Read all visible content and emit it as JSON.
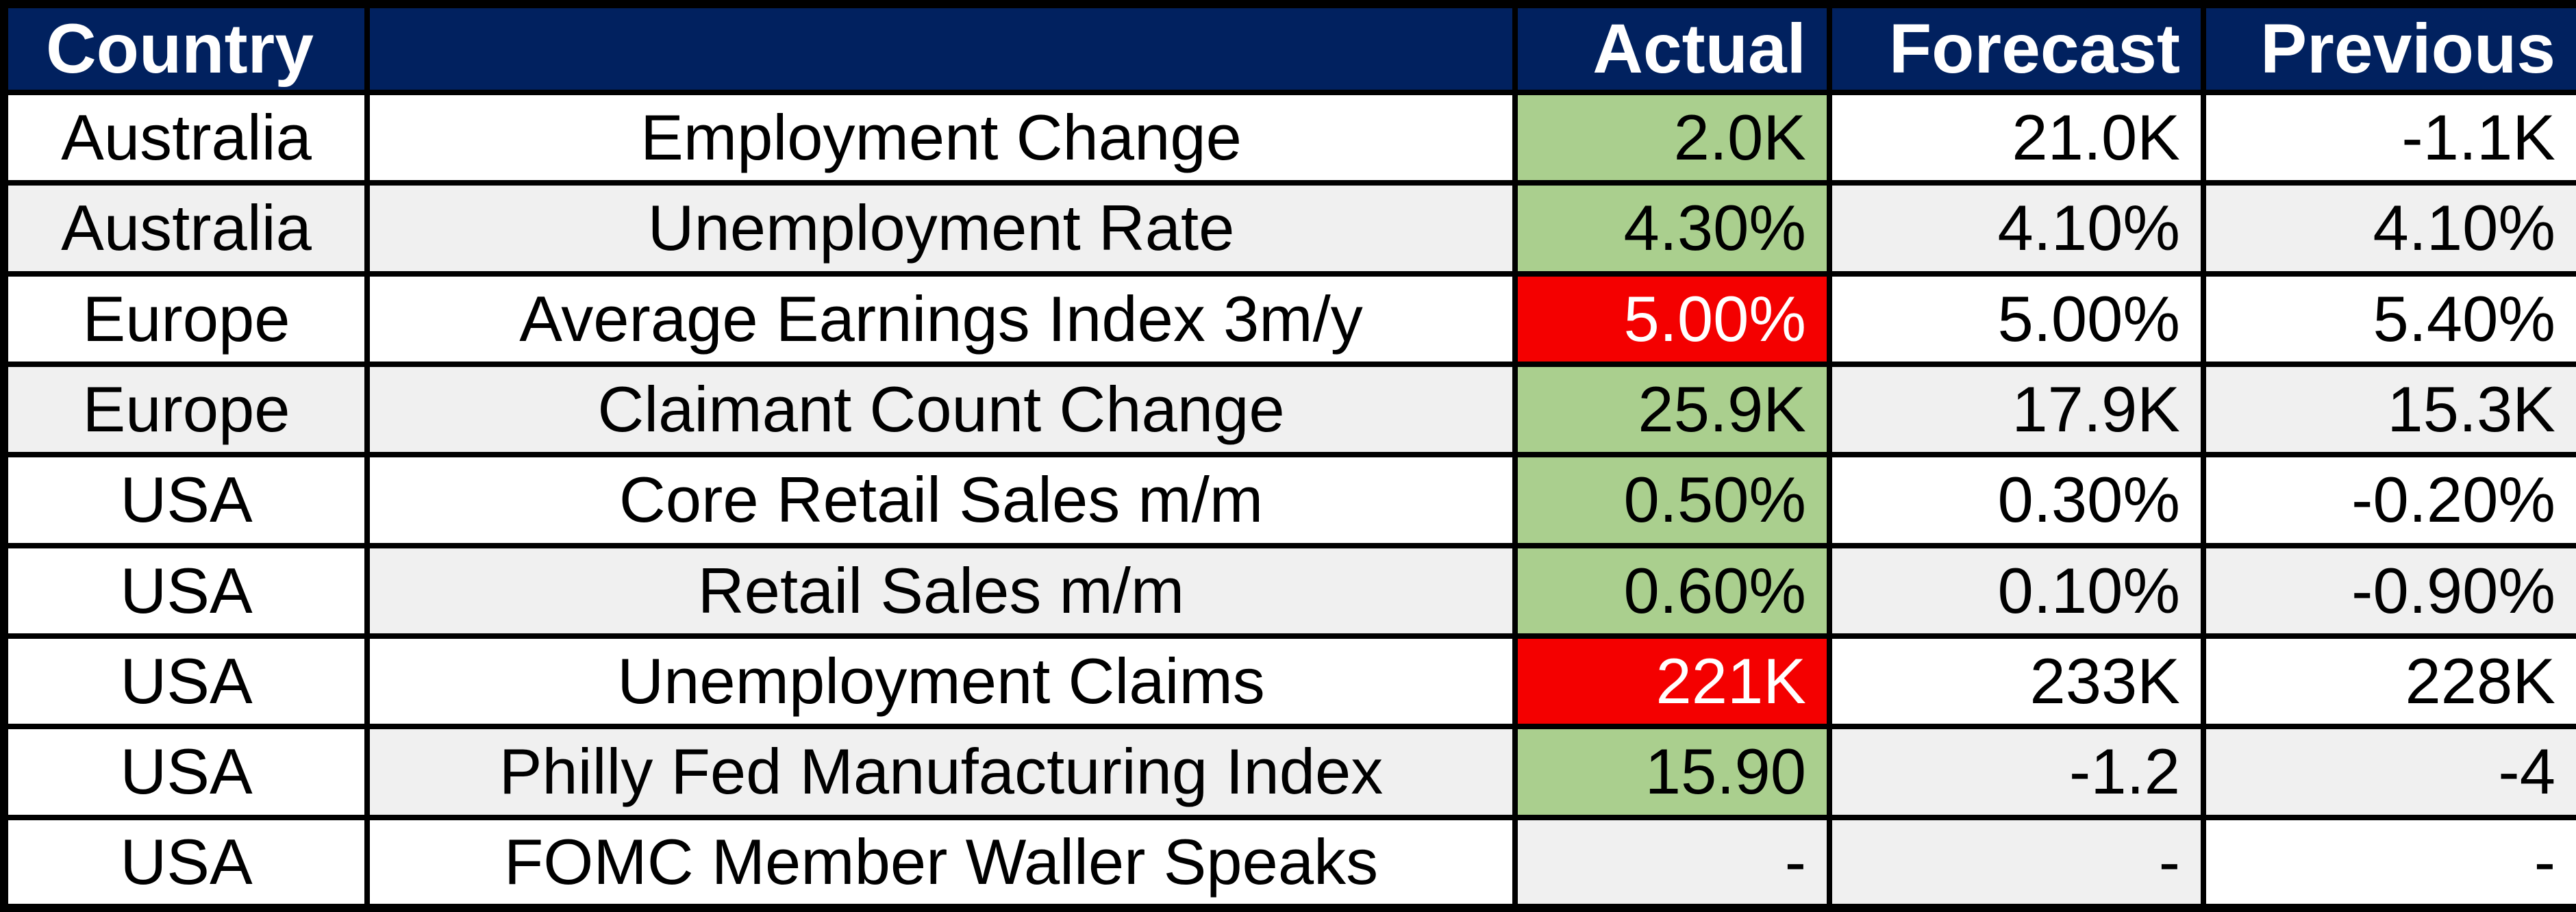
{
  "title": "Economic calendar results table",
  "table": {
    "columns": [
      {
        "key": "country",
        "label": "Country",
        "align": "center",
        "header_align": "left"
      },
      {
        "key": "event",
        "label": "",
        "align": "center",
        "header_align": "center"
      },
      {
        "key": "actual",
        "label": "Actual",
        "align": "right",
        "header_align": "right"
      },
      {
        "key": "forecast",
        "label": "Forecast",
        "align": "right",
        "header_align": "right"
      },
      {
        "key": "previous",
        "label": "Previous",
        "align": "right",
        "header_align": "right"
      }
    ],
    "rows": [
      {
        "country": "Australia",
        "event": "Employment Change",
        "actual": "2.0K",
        "forecast": "21.0K",
        "previous": "-1.1K",
        "bg": {
          "country": "white",
          "event": "white",
          "actual": "green",
          "forecast": "white",
          "previous": "white"
        }
      },
      {
        "country": "Australia",
        "event": "Unemployment Rate",
        "actual": "4.30%",
        "forecast": "4.10%",
        "previous": "4.10%",
        "bg": {
          "country": "gray",
          "event": "gray",
          "actual": "green",
          "forecast": "gray",
          "previous": "gray"
        }
      },
      {
        "country": "Europe",
        "event": "Average Earnings Index 3m/y",
        "actual": "5.00%",
        "forecast": "5.00%",
        "previous": "5.40%",
        "bg": {
          "country": "white",
          "event": "white",
          "actual": "red",
          "forecast": "white",
          "previous": "white"
        }
      },
      {
        "country": "Europe",
        "event": "Claimant Count Change",
        "actual": "25.9K",
        "forecast": "17.9K",
        "previous": "15.3K",
        "bg": {
          "country": "gray",
          "event": "gray",
          "actual": "green",
          "forecast": "gray",
          "previous": "gray"
        }
      },
      {
        "country": "USA",
        "event": "Core Retail Sales m/m",
        "actual": "0.50%",
        "forecast": "0.30%",
        "previous": "-0.20%",
        "bg": {
          "country": "white",
          "event": "white",
          "actual": "green",
          "forecast": "white",
          "previous": "white"
        }
      },
      {
        "country": "USA",
        "event": "Retail Sales m/m",
        "actual": "0.60%",
        "forecast": "0.10%",
        "previous": "-0.90%",
        "bg": {
          "country": "white",
          "event": "gray",
          "actual": "green",
          "forecast": "gray",
          "previous": "gray"
        }
      },
      {
        "country": "USA",
        "event": "Unemployment Claims",
        "actual": "221K",
        "forecast": "233K",
        "previous": "228K",
        "bg": {
          "country": "white",
          "event": "white",
          "actual": "red",
          "forecast": "white",
          "previous": "white"
        }
      },
      {
        "country": "USA",
        "event": "Philly Fed Manufacturing Index",
        "actual": "15.90",
        "forecast": "-1.2",
        "previous": "-4",
        "bg": {
          "country": "white",
          "event": "gray",
          "actual": "green",
          "forecast": "gray",
          "previous": "gray"
        }
      },
      {
        "country": "USA",
        "event": "FOMC Member Waller Speaks",
        "actual": "-",
        "forecast": "-",
        "previous": "-",
        "bg": {
          "country": "white",
          "event": "white",
          "actual": "gray",
          "forecast": "gray",
          "previous": "white"
        }
      }
    ]
  },
  "colors": {
    "header_bg": "#01215f",
    "header_text": "#ffffff",
    "beat_green": "#aacf8e",
    "miss_red": "#f40000",
    "miss_text": "#ffffff",
    "row_shade": "#f0f0f0",
    "row_plain": "#ffffff",
    "grid_border": "#000000",
    "body_text": "#000000"
  },
  "chart_data": {
    "type": "table",
    "title": "Economic calendar results",
    "columns": [
      "Country",
      "",
      "Actual",
      "Forecast",
      "Previous"
    ],
    "rows": [
      [
        "Australia",
        "Employment Change",
        "2.0K",
        "21.0K",
        "-1.1K"
      ],
      [
        "Australia",
        "Unemployment Rate",
        "4.30%",
        "4.10%",
        "4.10%"
      ],
      [
        "Europe",
        "Average Earnings Index 3m/y",
        "5.00%",
        "5.00%",
        "5.40%"
      ],
      [
        "Europe",
        "Claimant Count Change",
        "25.9K",
        "17.9K",
        "15.3K"
      ],
      [
        "USA",
        "Core Retail Sales m/m",
        "0.50%",
        "0.30%",
        "-0.20%"
      ],
      [
        "USA",
        "Retail Sales m/m",
        "0.60%",
        "0.10%",
        "-0.90%"
      ],
      [
        "USA",
        "Unemployment Claims",
        "221K",
        "233K",
        "228K"
      ],
      [
        "USA",
        "Philly Fed Manufacturing Index",
        "15.90",
        "-1.2",
        "-4"
      ],
      [
        "USA",
        "FOMC Member Waller Speaks",
        "-",
        "-",
        "-"
      ]
    ],
    "highlights": {
      "actual_green_row_indices": [
        0,
        1,
        3,
        4,
        5,
        7
      ],
      "actual_red_row_indices": [
        2,
        6
      ],
      "legend": "Actual column highlighted green or red; red cells use white text"
    },
    "layout": "header row navy with white bold text; data rows alternate white / light-gray shading"
  }
}
